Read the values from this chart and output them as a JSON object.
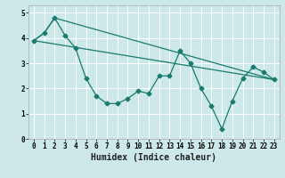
{
  "xlabel": "Humidex (Indice chaleur)",
  "background_color": "#cce8e8",
  "grid_color": "#ffffff",
  "line_color": "#1a7a6e",
  "xlim": [
    -0.5,
    23.5
  ],
  "ylim": [
    0,
    5.3
  ],
  "yticks": [
    0,
    1,
    2,
    3,
    4,
    5
  ],
  "xticks": [
    0,
    1,
    2,
    3,
    4,
    5,
    6,
    7,
    8,
    9,
    10,
    11,
    12,
    13,
    14,
    15,
    16,
    17,
    18,
    19,
    20,
    21,
    22,
    23
  ],
  "line1_x": [
    0,
    1,
    2,
    3,
    4,
    5,
    6,
    7,
    8,
    9,
    10,
    11,
    12,
    13,
    14,
    15,
    16,
    17,
    18,
    19,
    20,
    21,
    22,
    23
  ],
  "line1_y": [
    3.9,
    4.2,
    4.8,
    4.1,
    3.6,
    2.4,
    1.7,
    1.4,
    1.4,
    1.6,
    1.9,
    1.8,
    2.5,
    2.5,
    3.5,
    3.0,
    2.0,
    1.3,
    0.4,
    1.5,
    2.4,
    2.85,
    2.65,
    2.35
  ],
  "line2_x": [
    0,
    1,
    2,
    23
  ],
  "line2_y": [
    3.9,
    4.2,
    4.8,
    2.35
  ],
  "line3_x": [
    0,
    23
  ],
  "line3_y": [
    3.9,
    2.35
  ],
  "marker": "D",
  "marker_size": 2.5,
  "linewidth": 0.9,
  "tick_fontsize": 5.5,
  "label_fontsize": 7
}
